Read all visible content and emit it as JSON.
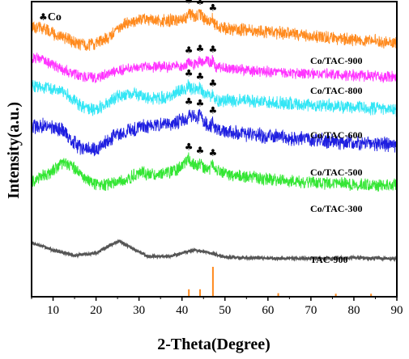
{
  "chart_data": {
    "type": "line",
    "xlabel": "2-Theta(Degree)",
    "ylabel": "Intensity(a.u.)",
    "xlim": [
      5,
      90
    ],
    "x_ticks": [
      10,
      20,
      30,
      40,
      50,
      60,
      70,
      80,
      90
    ],
    "y_ticks_shown": false,
    "grid": false,
    "marker_legend": {
      "symbol": "♣",
      "label": "Co"
    },
    "series": [
      {
        "name": "Co/TAC-900",
        "color": "#ff8a1e",
        "offset": 5.0,
        "profile": [
          [
            5,
            0.55
          ],
          [
            8,
            0.45
          ],
          [
            12,
            0.22
          ],
          [
            16,
            0.05
          ],
          [
            19,
            0.0
          ],
          [
            23,
            0.25
          ],
          [
            27,
            0.6
          ],
          [
            31,
            0.72
          ],
          [
            35,
            0.68
          ],
          [
            39,
            0.7
          ],
          [
            42,
            0.82
          ],
          [
            44,
            0.78
          ],
          [
            46,
            0.66
          ],
          [
            50,
            0.45
          ],
          [
            60,
            0.38
          ],
          [
            70,
            0.25
          ],
          [
            80,
            0.15
          ],
          [
            90,
            0.08
          ]
        ],
        "peaks": [
          41.6,
          44.2,
          47.2
        ]
      },
      {
        "name": "Co/TAC-800",
        "color": "#ff33ff",
        "offset": 4.0,
        "profile": [
          [
            5,
            0.65
          ],
          [
            8,
            0.55
          ],
          [
            12,
            0.3
          ],
          [
            16,
            0.08
          ],
          [
            20,
            0.02
          ],
          [
            25,
            0.25
          ],
          [
            30,
            0.38
          ],
          [
            35,
            0.35
          ],
          [
            40,
            0.38
          ],
          [
            44,
            0.45
          ],
          [
            46,
            0.55
          ],
          [
            48,
            0.35
          ],
          [
            55,
            0.25
          ],
          [
            65,
            0.18
          ],
          [
            75,
            0.12
          ],
          [
            90,
            0.05
          ]
        ],
        "peaks": [
          41.6,
          44.2,
          47.2
        ]
      },
      {
        "name": "Co/TAC-600",
        "color": "#33e6f5",
        "offset": 3.0,
        "profile": [
          [
            5,
            0.7
          ],
          [
            9,
            0.65
          ],
          [
            13,
            0.5
          ],
          [
            17,
            0.1
          ],
          [
            20,
            0.05
          ],
          [
            25,
            0.4
          ],
          [
            29,
            0.5
          ],
          [
            33,
            0.35
          ],
          [
            37,
            0.4
          ],
          [
            41,
            0.65
          ],
          [
            44,
            0.55
          ],
          [
            48,
            0.3
          ],
          [
            55,
            0.3
          ],
          [
            65,
            0.22
          ],
          [
            75,
            0.15
          ],
          [
            90,
            0.05
          ]
        ],
        "peaks": [
          41.6,
          44.2,
          47.2
        ]
      },
      {
        "name": "Co/TAC-500",
        "color": "#1f1fe0",
        "offset": 2.0,
        "profile": [
          [
            5,
            0.5
          ],
          [
            8,
            0.55
          ],
          [
            12,
            0.45
          ],
          [
            16,
            0.05
          ],
          [
            20,
            0.0
          ],
          [
            25,
            0.35
          ],
          [
            30,
            0.5
          ],
          [
            35,
            0.55
          ],
          [
            40,
            0.65
          ],
          [
            43,
            0.75
          ],
          [
            46,
            0.55
          ],
          [
            50,
            0.4
          ],
          [
            60,
            0.3
          ],
          [
            70,
            0.22
          ],
          [
            80,
            0.15
          ],
          [
            90,
            0.1
          ]
        ],
        "peaks": [
          41.6,
          44.2,
          47.2
        ]
      },
      {
        "name": "Co/TAC-300",
        "color": "#33e633",
        "offset": 1.0,
        "profile": [
          [
            5,
            0.15
          ],
          [
            9,
            0.35
          ],
          [
            12,
            0.6
          ],
          [
            14,
            0.55
          ],
          [
            17,
            0.25
          ],
          [
            21,
            0.05
          ],
          [
            26,
            0.15
          ],
          [
            30,
            0.35
          ],
          [
            34,
            0.3
          ],
          [
            38,
            0.38
          ],
          [
            41,
            0.6
          ],
          [
            44,
            0.5
          ],
          [
            47,
            0.45
          ],
          [
            51,
            0.3
          ],
          [
            60,
            0.2
          ],
          [
            70,
            0.12
          ],
          [
            80,
            0.08
          ],
          [
            90,
            0.05
          ]
        ],
        "peaks": [
          41.6,
          44.2,
          47.2
        ]
      },
      {
        "name": "TAC-900",
        "color": "#555555",
        "offset": 0.0,
        "profile": [
          [
            5,
            0.55
          ],
          [
            10,
            0.32
          ],
          [
            15,
            0.15
          ],
          [
            20,
            0.22
          ],
          [
            23,
            0.45
          ],
          [
            25.5,
            0.6
          ],
          [
            28,
            0.4
          ],
          [
            32,
            0.12
          ],
          [
            37,
            0.12
          ],
          [
            40,
            0.22
          ],
          [
            43,
            0.32
          ],
          [
            46,
            0.25
          ],
          [
            50,
            0.1
          ],
          [
            60,
            0.06
          ],
          [
            70,
            0.06
          ],
          [
            80,
            0.08
          ],
          [
            90,
            0.05
          ]
        ],
        "peaks": []
      }
    ],
    "reference_sticks": {
      "color": "#ff8a1e",
      "positions": [
        41.6,
        44.2,
        47.2,
        62.4,
        75.8,
        84.0
      ],
      "relative_intensity": [
        0.25,
        0.25,
        1.0,
        0.12,
        0.1,
        0.1
      ]
    }
  }
}
